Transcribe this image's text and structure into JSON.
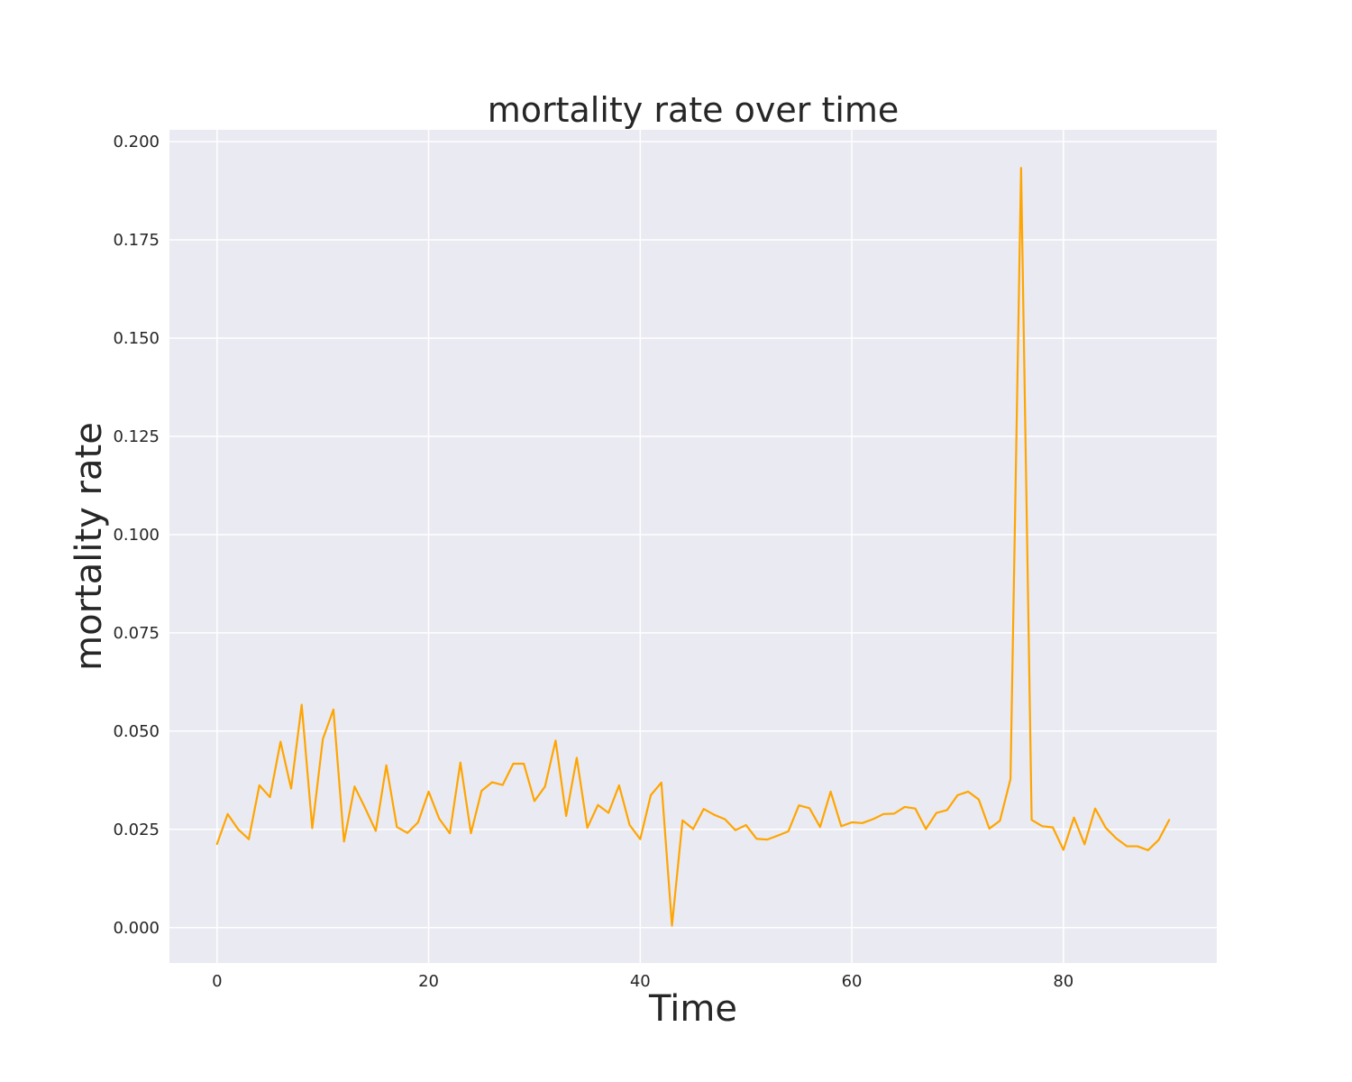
{
  "colors": {
    "background": "#ffffff",
    "plot_background": "#eaeaf2",
    "grid": "#ffffff",
    "line": "#ffa500",
    "text": "#262626"
  },
  "chart_data": {
    "type": "line",
    "title": "mortality rate over time",
    "xlabel": "Time",
    "ylabel": "mortality rate",
    "xlim": [
      -4.5,
      94.5
    ],
    "ylim": [
      -0.009,
      0.203
    ],
    "xticks": [
      0,
      20,
      40,
      60,
      80
    ],
    "xtick_labels": [
      "0",
      "20",
      "40",
      "60",
      "80"
    ],
    "yticks": [
      0.0,
      0.025,
      0.05,
      0.075,
      0.1,
      0.125,
      0.15,
      0.175,
      0.2
    ],
    "ytick_labels": [
      "0.000",
      "0.025",
      "0.050",
      "0.075",
      "0.100",
      "0.125",
      "0.150",
      "0.175",
      "0.200"
    ],
    "grid": true,
    "series": [
      {
        "color": "#ffa500",
        "x": [
          0,
          1,
          2,
          3,
          4,
          5,
          6,
          7,
          8,
          9,
          10,
          11,
          12,
          13,
          14,
          15,
          16,
          17,
          18,
          19,
          20,
          21,
          22,
          23,
          24,
          25,
          26,
          27,
          28,
          29,
          30,
          31,
          32,
          33,
          34,
          35,
          36,
          37,
          38,
          39,
          40,
          41,
          42,
          43,
          44,
          45,
          46,
          47,
          48,
          49,
          50,
          51,
          52,
          53,
          54,
          55,
          56,
          57,
          58,
          59,
          60,
          61,
          62,
          63,
          64,
          65,
          66,
          67,
          68,
          69,
          70,
          71,
          72,
          73,
          74,
          75,
          76,
          77,
          78,
          79,
          80,
          81,
          82,
          83,
          84,
          85,
          86,
          87,
          88,
          89,
          90
        ],
        "y": [
          0.0213,
          0.0289,
          0.025,
          0.0225,
          0.0362,
          0.0332,
          0.0473,
          0.0354,
          0.0567,
          0.0253,
          0.048,
          0.0555,
          0.0219,
          0.0359,
          0.0304,
          0.0246,
          0.0413,
          0.0256,
          0.0241,
          0.0268,
          0.0346,
          0.0277,
          0.024,
          0.042,
          0.024,
          0.0348,
          0.037,
          0.0363,
          0.0417,
          0.0417,
          0.0322,
          0.0359,
          0.0476,
          0.0284,
          0.0432,
          0.0254,
          0.0312,
          0.0292,
          0.0362,
          0.0261,
          0.0225,
          0.0337,
          0.0369,
          0.0005,
          0.0273,
          0.0251,
          0.0302,
          0.0287,
          0.0276,
          0.0248,
          0.0261,
          0.0226,
          0.0224,
          0.0234,
          0.0245,
          0.0311,
          0.0304,
          0.0256,
          0.0346,
          0.0258,
          0.0268,
          0.0266,
          0.0276,
          0.0289,
          0.029,
          0.0307,
          0.0303,
          0.0251,
          0.0292,
          0.0299,
          0.0337,
          0.0346,
          0.0326,
          0.0252,
          0.0272,
          0.0378,
          0.1933,
          0.0274,
          0.0258,
          0.0255,
          0.0198,
          0.028,
          0.0212,
          0.0303,
          0.0254,
          0.0227,
          0.0207,
          0.0207,
          0.0197,
          0.0223,
          0.0274
        ]
      }
    ]
  }
}
